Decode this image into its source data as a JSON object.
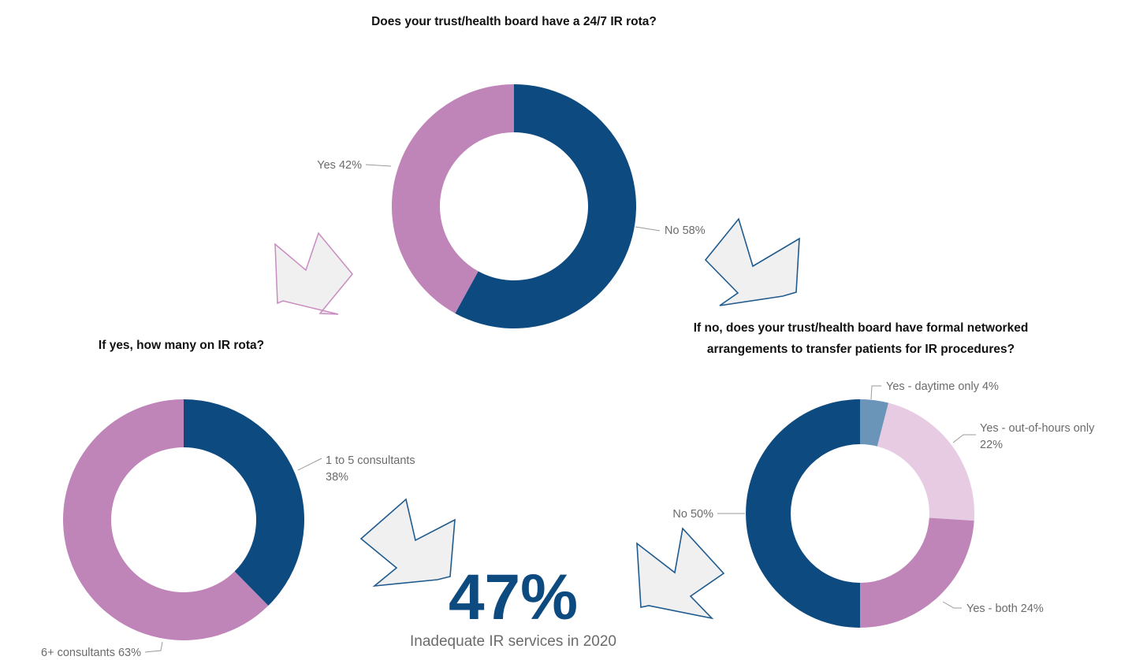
{
  "chart_data": [
    {
      "type": "pie",
      "title": "Does your trust/health board have a 24/7 IR rota?",
      "slices": [
        {
          "label": "No 58%",
          "value": 58,
          "color": "#0d4a80"
        },
        {
          "label": "Yes 42%",
          "value": 42,
          "color": "#bf84b8"
        }
      ]
    },
    {
      "type": "pie",
      "title": "If yes, how many on IR rota?",
      "slices": [
        {
          "label": "1 to 5 consultants 38%",
          "value": 38,
          "color": "#0d4a80"
        },
        {
          "label": "6+ consultants 63%",
          "value": 63,
          "color": "#bf84b8"
        }
      ]
    },
    {
      "type": "pie",
      "title": "If no, does your trust/health board have formal networked arrangements to transfer patients for IR procedures?",
      "slices": [
        {
          "label": "Yes - daytime only 4%",
          "value": 4,
          "color": "#6a94b8"
        },
        {
          "label": "Yes - out-of-hours only 22%",
          "value": 22,
          "color": "#e6cbe2"
        },
        {
          "label": "Yes - both 24%",
          "value": 24,
          "color": "#bf84b8"
        },
        {
          "label": "No 50%",
          "value": 50,
          "color": "#0d4a80"
        }
      ]
    }
  ],
  "titles": {
    "top": "Does your trust/health board have a 24/7 IR rota?",
    "left": "If yes, how many on IR rota?",
    "right_line1": "If no, does your trust/health board have formal networked",
    "right_line2": "arrangements to transfer patients for IR procedures?"
  },
  "labels": {
    "top_yes": "Yes 42%",
    "top_no": "No 58%",
    "left_1to5_line1": "1 to 5 consultants",
    "left_1to5_line2": "38%",
    "left_6plus": "6+ consultants 63%",
    "right_daytime": "Yes - daytime only 4%",
    "right_ooh_line1": "Yes - out-of-hours only",
    "right_ooh_line2": "22%",
    "right_both": "Yes - both 24%",
    "right_no": "No 50%"
  },
  "summary": {
    "value": "47%",
    "caption": "Inadequate IR services in 2020"
  },
  "colors": {
    "navy": "#0d4a80",
    "purple": "#bf84b8",
    "light_purple": "#e6cbe2",
    "steel_blue": "#6a94b8",
    "arrow_fill": "#f0f0f0",
    "arrow_navy_stroke": "#1f5b8e",
    "arrow_purple_stroke": "#c98bc0"
  },
  "icons": [
    "arrow-down-left-icon",
    "arrow-down-right-icon"
  ]
}
